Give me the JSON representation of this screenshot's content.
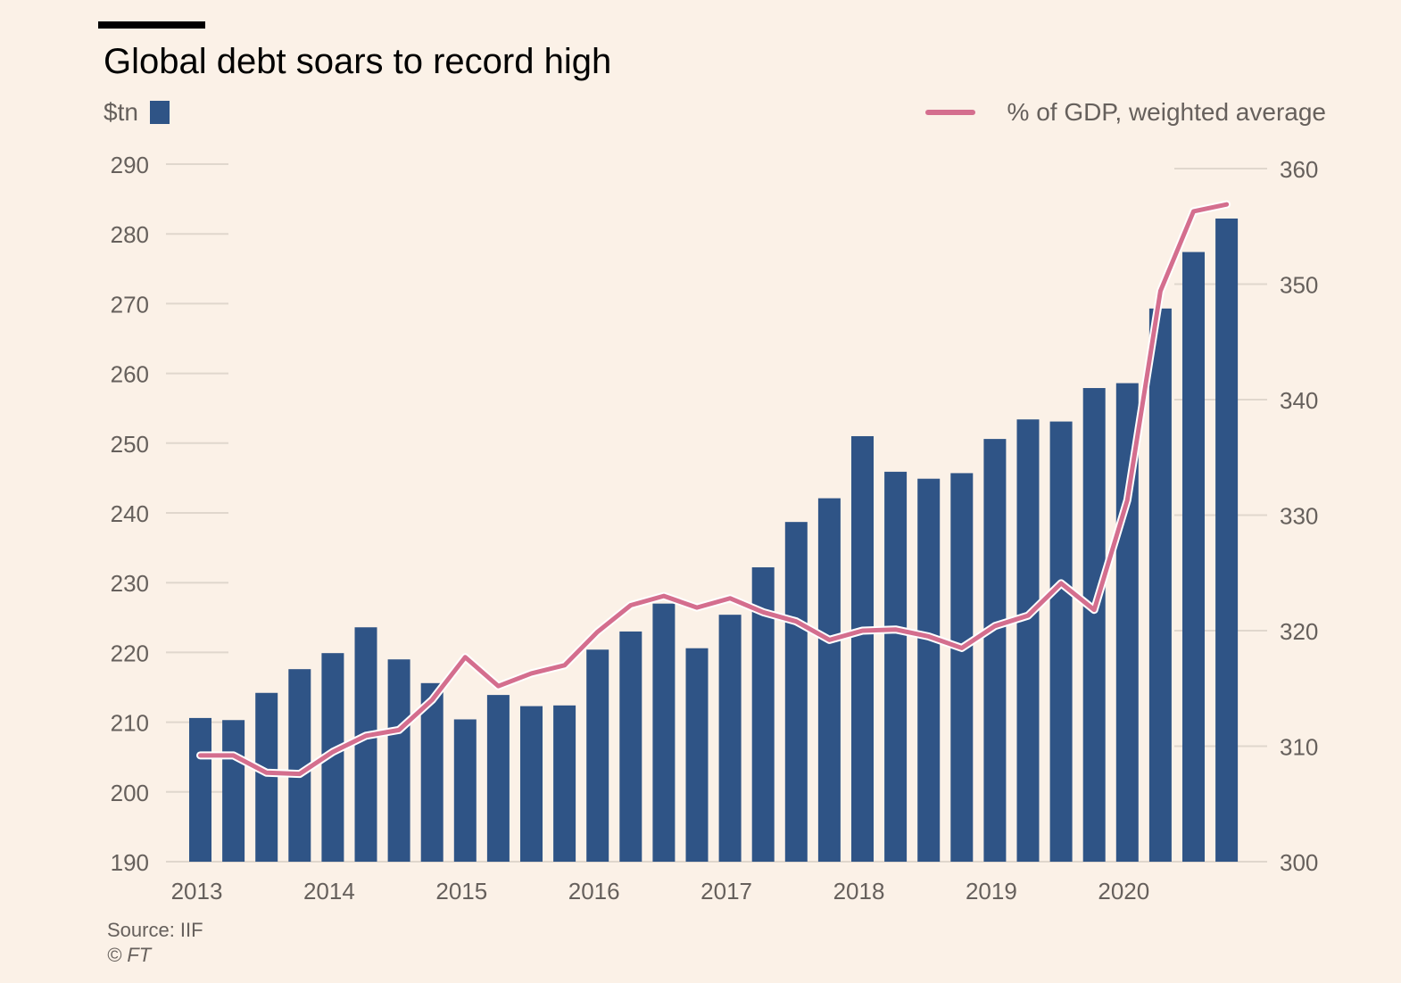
{
  "title": "Global debt soars to record high",
  "left_axis_unit": "$tn",
  "legend_line_label": "% of GDP, weighted average",
  "source": "Source: IIF",
  "copyright": "© FT",
  "colors": {
    "background": "#fbf1e7",
    "bar": "#2f5486",
    "line": "#d46e8e",
    "axis_text": "#66605c",
    "grid": "#e0d7cd",
    "title": "#000000",
    "topbar": "#000000"
  },
  "chart_data": {
    "type": "bar",
    "title": "Global debt soars to record high",
    "x_tick_labels": [
      "2013",
      "2014",
      "2015",
      "2016",
      "2017",
      "2018",
      "2019",
      "2020"
    ],
    "x_tick_positions": [
      0,
      4,
      8,
      12,
      16,
      20,
      24,
      28
    ],
    "left_axis": {
      "label": "$tn",
      "ylim": [
        190,
        290
      ],
      "ticks": [
        290,
        280,
        270,
        260,
        250,
        240,
        230,
        220,
        210,
        200,
        190
      ]
    },
    "right_axis": {
      "label": "% of GDP, weighted average",
      "ylim": [
        300,
        360
      ],
      "ticks": [
        360,
        350,
        340,
        330,
        320,
        310,
        300
      ]
    },
    "series": [
      {
        "name": "$tn",
        "type": "bar",
        "axis": "left",
        "values": [
          210.6,
          210.3,
          214.2,
          217.6,
          219.9,
          223.6,
          219.0,
          215.6,
          210.4,
          213.9,
          212.3,
          212.4,
          220.4,
          223.0,
          227.0,
          220.6,
          225.4,
          232.2,
          238.7,
          242.1,
          251.0,
          245.9,
          244.9,
          245.7,
          250.6,
          253.4,
          253.1,
          257.9,
          258.6,
          269.3,
          277.4,
          282.2
        ]
      },
      {
        "name": "% of GDP, weighted average",
        "type": "line",
        "axis": "right",
        "values": [
          309.2,
          309.2,
          307.7,
          307.6,
          309.5,
          310.9,
          311.4,
          314.0,
          317.7,
          315.2,
          316.3,
          317.0,
          319.9,
          322.2,
          323.0,
          322.0,
          322.8,
          321.6,
          320.8,
          319.2,
          320.0,
          320.1,
          319.5,
          318.5,
          320.4,
          321.3,
          324.1,
          321.8,
          331.3,
          349.4,
          356.3,
          356.9
        ]
      }
    ]
  }
}
